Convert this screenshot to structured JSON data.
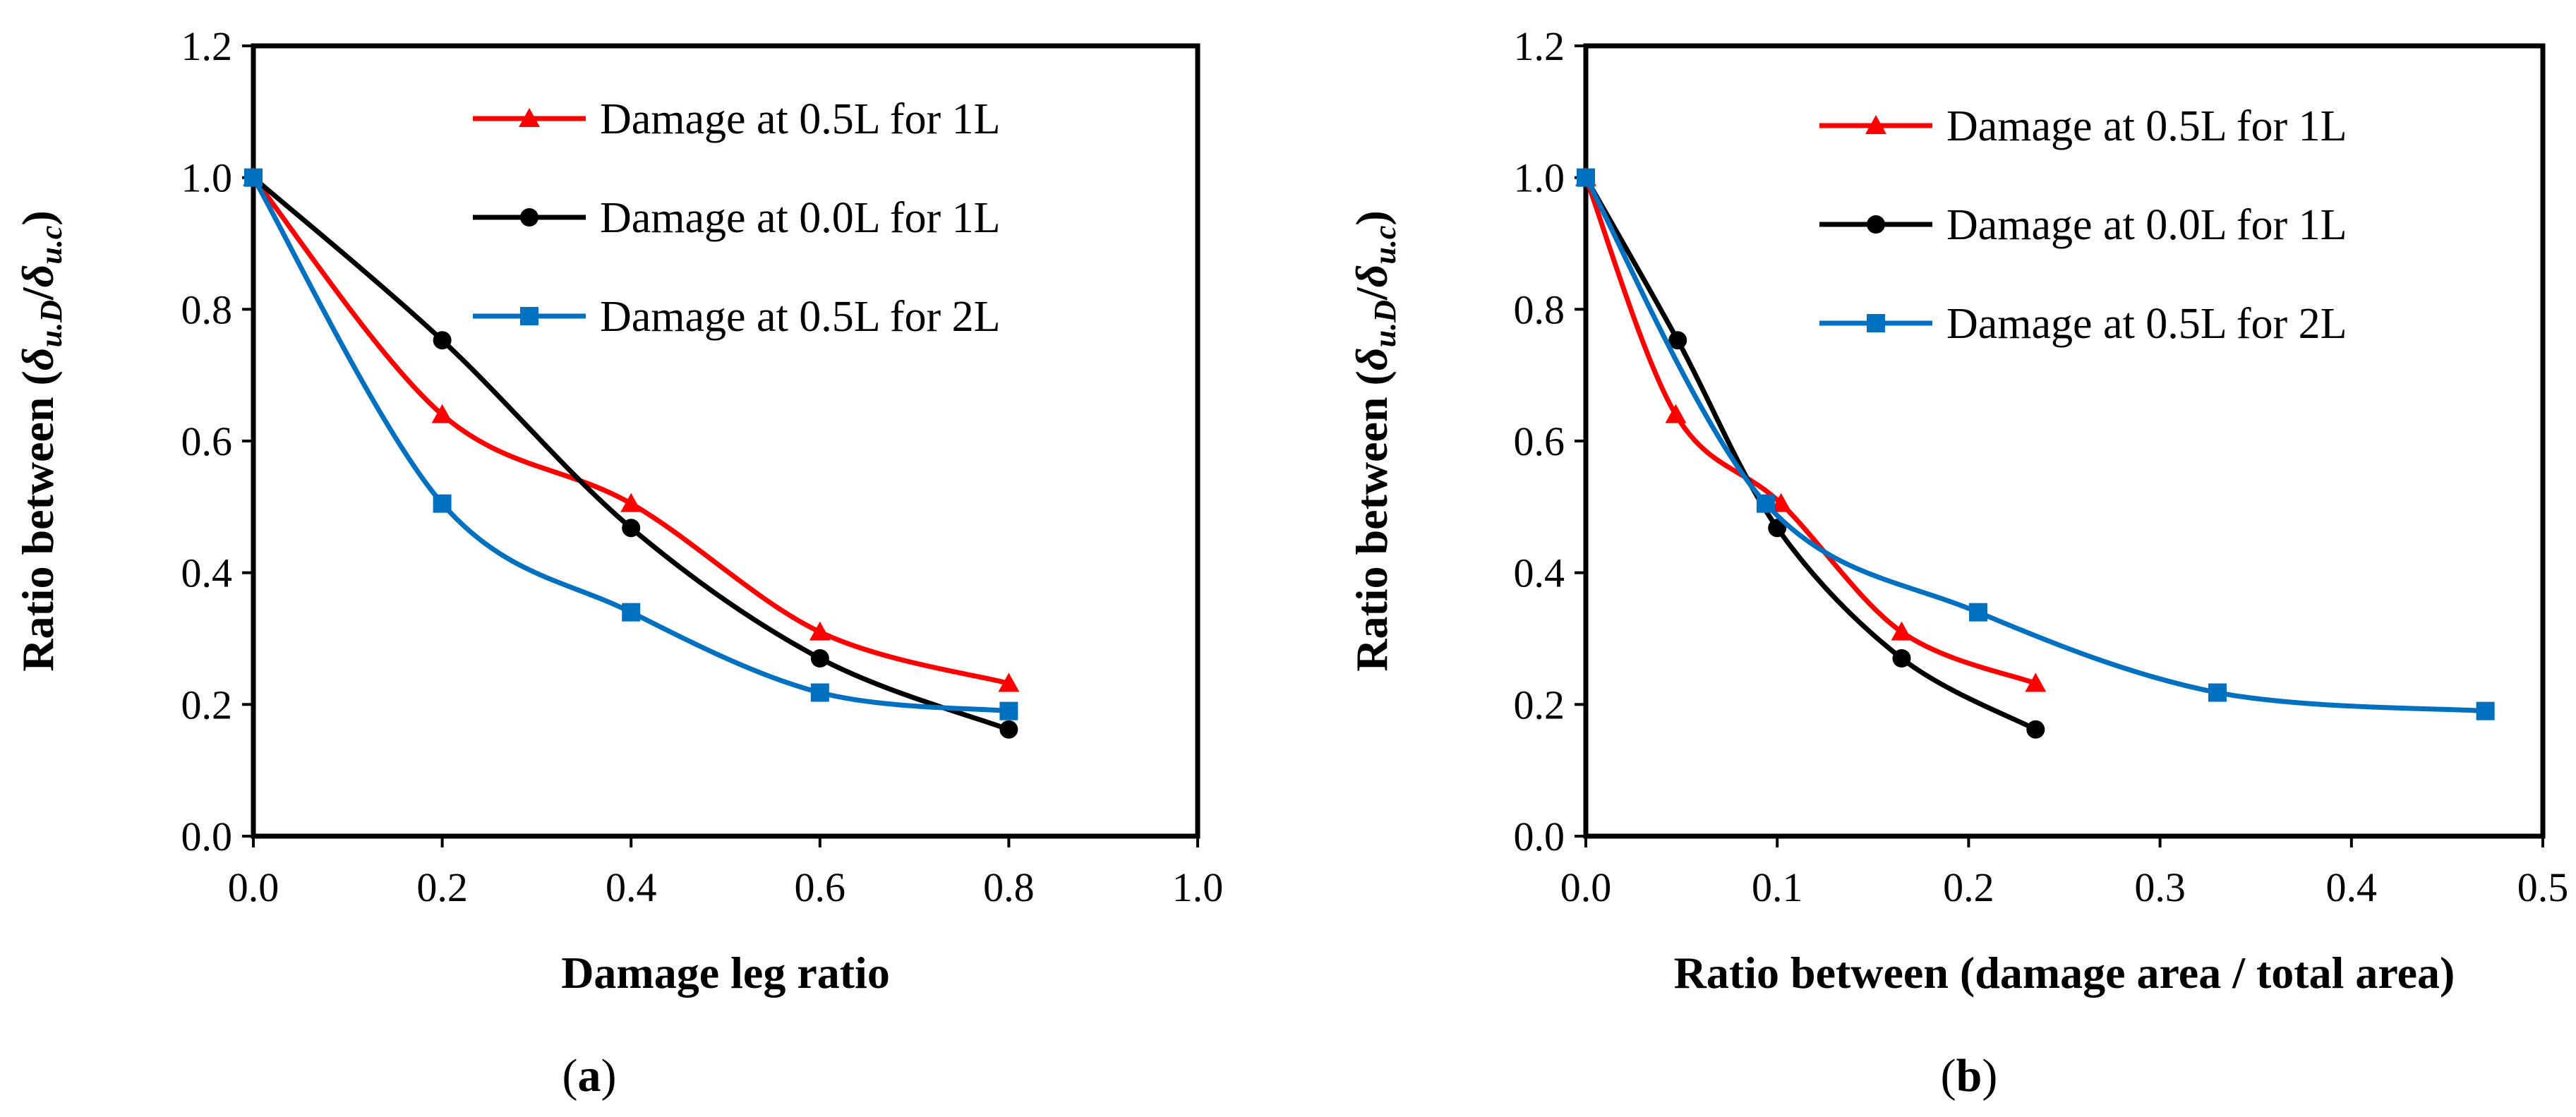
{
  "figure": {
    "panels": [
      "a",
      "b"
    ]
  },
  "chart_data": [
    {
      "id": "a",
      "type": "line",
      "caption_letter": "a",
      "xlabel": "Damage leg ratio",
      "ylabel_prefix": "Ratio between (",
      "ylabel_num": "δ",
      "ylabel_num_sub": "u.D",
      "ylabel_slash": "/",
      "ylabel_den": "δ",
      "ylabel_den_sub": "u.c",
      "ylabel_suffix": ")",
      "xlim": [
        0,
        1.0
      ],
      "ylim": [
        0,
        1.2
      ],
      "xticks": [
        "0.0",
        "0.2",
        "0.4",
        "0.6",
        "0.8",
        "1.0"
      ],
      "xtick_values": [
        0,
        0.2,
        0.4,
        0.6,
        0.8,
        1.0
      ],
      "yticks": [
        "0.0",
        "0.2",
        "0.4",
        "0.6",
        "0.8",
        "1.0",
        "1.2"
      ],
      "ytick_values": [
        0,
        0.2,
        0.4,
        0.6,
        0.8,
        1.0,
        1.2
      ],
      "grid": false,
      "legend_position": "top-right",
      "series": [
        {
          "name": "Damage at 0.5L for 1L",
          "color": "#ff0000",
          "marker": "triangle",
          "x": [
            0.0,
            0.2,
            0.4,
            0.6,
            0.8
          ],
          "y": [
            1.0,
            0.64,
            0.505,
            0.31,
            0.232
          ]
        },
        {
          "name": "Damage at 0.0L for 1L",
          "color": "#000000",
          "marker": "circle",
          "x": [
            0.0,
            0.2,
            0.4,
            0.6,
            0.8
          ],
          "y": [
            1.0,
            0.753,
            0.468,
            0.27,
            0.162
          ]
        },
        {
          "name": "Damage at 0.5L for 2L",
          "color": "#0070c0",
          "marker": "square",
          "x": [
            0.0,
            0.2,
            0.4,
            0.6,
            0.8
          ],
          "y": [
            1.0,
            0.505,
            0.34,
            0.218,
            0.19
          ]
        }
      ]
    },
    {
      "id": "b",
      "type": "line",
      "caption_letter": "b",
      "xlabel": "Ratio between (damage area / total area)",
      "ylabel_prefix": "Ratio between (",
      "ylabel_num": "δ",
      "ylabel_num_sub": "u.D",
      "ylabel_slash": "/",
      "ylabel_den": "δ",
      "ylabel_den_sub": "u.c",
      "ylabel_suffix": ")",
      "xlim": [
        0,
        0.5
      ],
      "ylim": [
        0,
        1.2
      ],
      "xticks": [
        "0.0",
        "0.1",
        "0.2",
        "0.3",
        "0.4",
        "0.5"
      ],
      "xtick_values": [
        0,
        0.1,
        0.2,
        0.3,
        0.4,
        0.5
      ],
      "yticks": [
        "0.0",
        "0.2",
        "0.4",
        "0.6",
        "0.8",
        "1.0",
        "1.2"
      ],
      "ytick_values": [
        0,
        0.2,
        0.4,
        0.6,
        0.8,
        1.0,
        1.2
      ],
      "grid": false,
      "legend_position": "top-right",
      "series": [
        {
          "name": "Damage at 0.5L for 1L",
          "color": "#ff0000",
          "marker": "triangle",
          "x": [
            0.0,
            0.047,
            0.102,
            0.165,
            0.235
          ],
          "y": [
            1.0,
            0.64,
            0.505,
            0.31,
            0.232
          ]
        },
        {
          "name": "Damage at 0.0L for 1L",
          "color": "#000000",
          "marker": "circle",
          "x": [
            0.0,
            0.048,
            0.1,
            0.165,
            0.235
          ],
          "y": [
            1.0,
            0.753,
            0.468,
            0.27,
            0.162
          ]
        },
        {
          "name": "Damage at 0.5L for 2L",
          "color": "#0070c0",
          "marker": "square",
          "x": [
            0.0,
            0.094,
            0.205,
            0.33,
            0.47
          ],
          "y": [
            1.0,
            0.505,
            0.34,
            0.218,
            0.19
          ]
        }
      ]
    }
  ]
}
